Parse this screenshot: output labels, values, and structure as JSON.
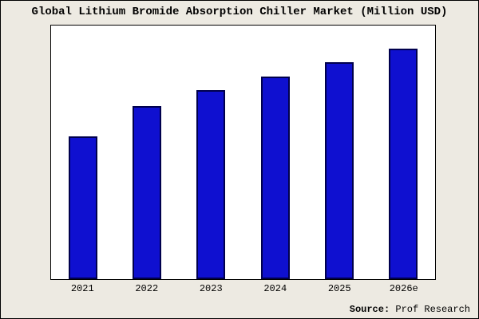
{
  "chart_data": {
    "type": "bar",
    "title": "Global Lithium Bromide Absorption Chiller Market (Million USD)",
    "categories": [
      "2021",
      "2022",
      "2023",
      "2024",
      "2025",
      "2026e"
    ],
    "values": [
      62,
      75,
      82,
      88,
      94,
      100
    ],
    "xlabel": "",
    "ylabel": "",
    "ylim": [
      0,
      110
    ],
    "grid": false,
    "legend": false,
    "bar_color": "#0f10d0",
    "bar_border_color": "#00004d",
    "plot_background": "#ffffff",
    "page_background": "#edeae2"
  },
  "footer": {
    "source_label": "Source:",
    "source_value": "Prof Research"
  }
}
